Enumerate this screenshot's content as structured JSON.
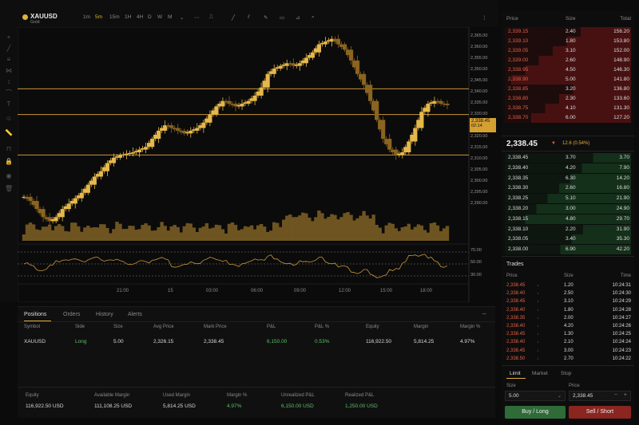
{
  "app": {
    "symbol": "XAUUSD",
    "symbol_sub": "Gold",
    "timeframes": [
      "1m",
      "5m",
      "15m",
      "1H",
      "4H",
      "D",
      "W",
      "M"
    ],
    "active_timeframe": "5m"
  },
  "chart": {
    "y_labels": [
      "2,365.00",
      "2,360.00",
      "2,355.00",
      "2,350.00",
      "2,345.00",
      "2,340.00",
      "2,335.00",
      "2,330.00",
      "2,325.00",
      "2,320.00",
      "2,315.00",
      "2,310.00",
      "2,305.00",
      "2,300.00",
      "2,295.00",
      "2,290.00"
    ],
    "x_labels": [
      "21:00",
      "15",
      "03:00",
      "06:00",
      "09:00",
      "12:00",
      "15:00",
      "18:00"
    ],
    "price_tag": "2,338.45",
    "price_tag_sub": "02:14",
    "rsi_labels": [
      "70.00",
      "50.00",
      "30.00"
    ]
  },
  "chart_data": {
    "type": "line",
    "title": "",
    "series": [
      {
        "values": [
          2304.5,
          2303,
          2300,
          2297,
          2295.5,
          2297,
          2300,
          2302,
          2304,
          2306,
          2309,
          2312,
          2314,
          2317,
          2319,
          2320,
          2320.5,
          2321,
          2322,
          2323,
          2326,
          2329,
          2331,
          2330,
          2329,
          2328,
          2329,
          2330,
          2332,
          2335,
          2338,
          2340,
          2339,
          2338,
          2339,
          2340,
          2342,
          2345,
          2350,
          2352,
          2353,
          2354,
          2353,
          2354,
          2356,
          2358,
          2361,
          2362,
          2363,
          2361,
          2359,
          2355,
          2350,
          2346,
          2340,
          2333,
          2326,
          2322,
          2320,
          2321,
          2325,
          2330,
          2336,
          2339,
          2340,
          2339,
          2338.45
        ]
      }
    ],
    "ylim": [
      2290,
      2365
    ],
    "horizontal_levels": [
      2344.5,
      2335,
      2320
    ],
    "rsi_levels": [
      70,
      50,
      30
    ]
  },
  "bottom": {
    "tabs": [
      "Positions",
      "Orders",
      "History",
      "Alerts"
    ],
    "active_tab": "Positions",
    "headers": [
      "Symbol",
      "Side",
      "Size",
      "Avg Price",
      "Mark Price",
      "P&L",
      "P&L %",
      "Equity",
      "Margin",
      "Margin %"
    ],
    "row": {
      "symbol": "XAUUSD",
      "side": "Long",
      "size": "5.00",
      "avg": "2,326.15",
      "mark": "2,338.45",
      "pnl": "6,150.00",
      "pnl_pct": "0.53%",
      "equity": "116,922.50",
      "margin": "5,814.25",
      "margin_pct": "4.97%"
    },
    "summary": [
      {
        "label": "Equity",
        "value": "116,922.50 USD"
      },
      {
        "label": "Available Margin",
        "value": "111,108.25 USD"
      },
      {
        "label": "Used Margin",
        "value": "5,814.25 USD"
      },
      {
        "label": "Margin %",
        "value": "4.97%"
      },
      {
        "label": "Unrealized P&L",
        "value": "6,150.00 USD"
      },
      {
        "label": "Realized P&L",
        "value": "1,250.00 USD"
      }
    ]
  },
  "orderbook": {
    "headers": [
      "Price",
      "Size",
      "Total"
    ],
    "asks": [
      [
        "2,339.15",
        "2.40",
        "156.20"
      ],
      [
        "2,339.10",
        "1.80",
        "153.80"
      ],
      [
        "2,339.05",
        "3.10",
        "152.00"
      ],
      [
        "2,339.00",
        "2.60",
        "148.90"
      ],
      [
        "2,338.95",
        "4.50",
        "146.30"
      ],
      [
        "2,338.90",
        "5.00",
        "141.80"
      ],
      [
        "2,338.85",
        "3.20",
        "136.80"
      ],
      [
        "2,338.80",
        "2.30",
        "133.60"
      ],
      [
        "2,338.75",
        "4.10",
        "131.30"
      ],
      [
        "2,338.70",
        "6.00",
        "127.20"
      ]
    ],
    "mid_price": "2,338.45",
    "mid_change": "12.6 (0.54%)",
    "bids": [
      [
        "2,338.45",
        "3.70",
        "3.70"
      ],
      [
        "2,338.40",
        "4.20",
        "7.90"
      ],
      [
        "2,338.35",
        "6.30",
        "14.20"
      ],
      [
        "2,338.30",
        "2.60",
        "16.80"
      ],
      [
        "2,338.25",
        "5.10",
        "21.90"
      ],
      [
        "2,338.20",
        "3.00",
        "24.90"
      ],
      [
        "2,338.15",
        "4.80",
        "29.70"
      ],
      [
        "2,338.10",
        "2.20",
        "31.90"
      ],
      [
        "2,338.05",
        "3.40",
        "35.30"
      ],
      [
        "2,338.00",
        "6.90",
        "42.20"
      ]
    ]
  },
  "trades": {
    "title": "Trades",
    "headers": [
      "Price",
      "Size",
      "Time"
    ],
    "rows": [
      [
        "2,338.45",
        "1.20",
        "10:24:31"
      ],
      [
        "2,338.40",
        "2.50",
        "10:24:30"
      ],
      [
        "2,338.45",
        "3.10",
        "10:24:29"
      ],
      [
        "2,338.40",
        "1.80",
        "10:24:28"
      ],
      [
        "2,338.35",
        "2.00",
        "10:24:27"
      ],
      [
        "2,338.40",
        "4.20",
        "10:24:26"
      ],
      [
        "2,338.45",
        "1.30",
        "10:24:25"
      ],
      [
        "2,338.40",
        "2.10",
        "10:24:24"
      ],
      [
        "2,338.45",
        "3.00",
        "10:24:23"
      ],
      [
        "2,338.50",
        "2.70",
        "10:24:22"
      ]
    ]
  },
  "order_form": {
    "tabs": [
      "Limit",
      "Market",
      "Stop"
    ],
    "size_label": "Size",
    "size_value": "5.00",
    "price_label": "Price",
    "price_value": "2,338.45",
    "buy_label": "Buy / Long",
    "sell_label": "Sell / Short"
  },
  "colors": {
    "accent": "#e0b040",
    "buy": "#2f6b38",
    "sell": "#8a2520",
    "up": "#5cbf6a",
    "down": "#e0624a"
  }
}
